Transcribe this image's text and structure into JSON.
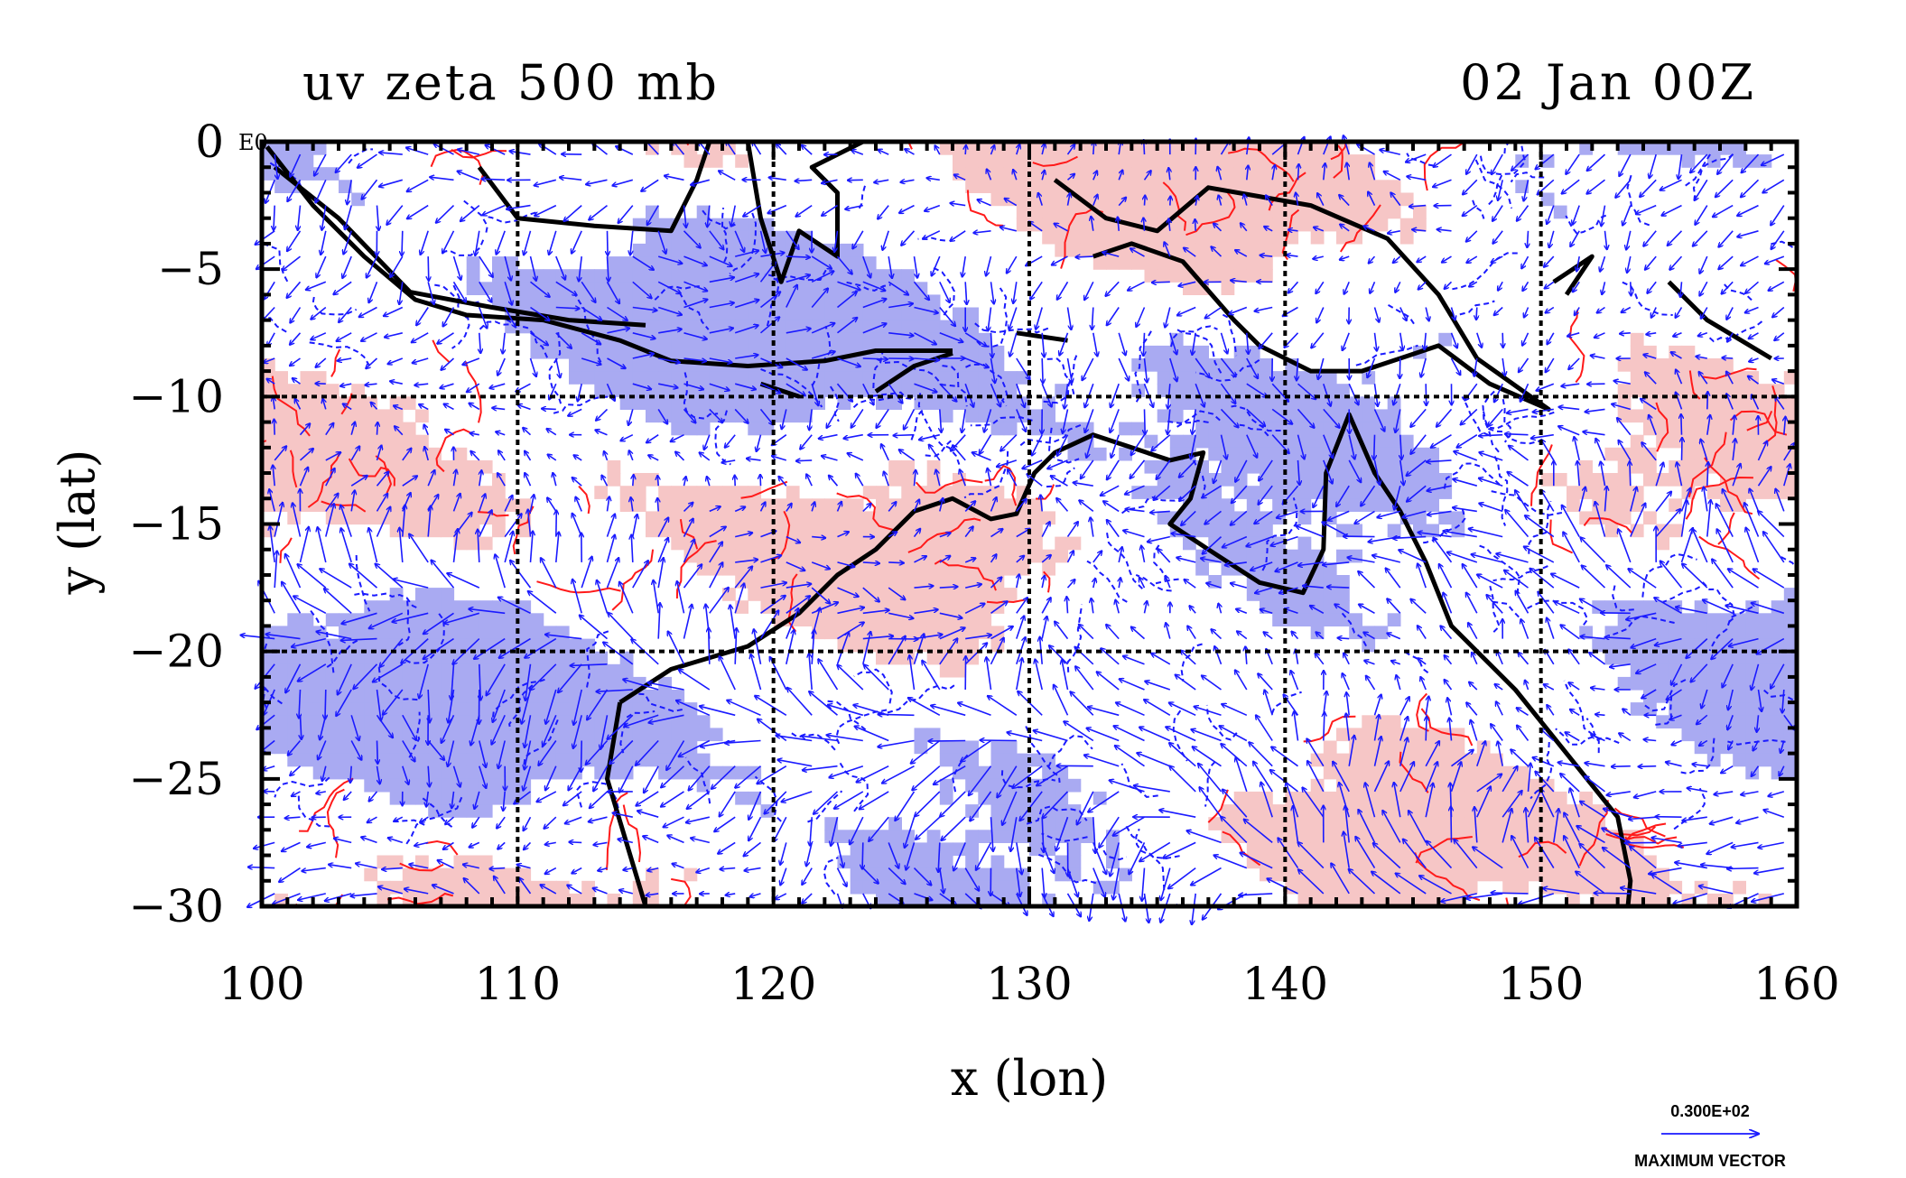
{
  "title_left": "uv zeta 500 mb",
  "title_right": "02 Jan 00Z",
  "corner_label": "E0",
  "legend": {
    "value": "0.300E+02",
    "caption": "MAXIMUM VECTOR",
    "arrow_color": "#1a1aff"
  },
  "colors": {
    "negative_fill": "#a9aaf2",
    "positive_fill": "#f6c6c6",
    "positive_contour": "#ff1a1a",
    "negative_contour": "#1a1aff",
    "vector": "#1a1aff",
    "coast": "#000000",
    "grid": "#000000"
  },
  "chart_data": {
    "type": "map",
    "xlabel": "x (lon)",
    "ylabel": "y (lat)",
    "xlim": [
      100,
      160
    ],
    "ylim": [
      -30,
      0
    ],
    "xticks": [
      100,
      110,
      120,
      130,
      140,
      150,
      160
    ],
    "yticks": [
      0,
      -5,
      -10,
      -15,
      -20,
      -25,
      -30
    ],
    "ytick_labels": [
      "0",
      "−5",
      "−10",
      "−15",
      "−20",
      "−25",
      "−30"
    ],
    "gridlines_x": [
      110,
      120,
      130,
      140,
      150
    ],
    "gridlines_y": [
      -10,
      -20
    ],
    "grid": "dashed",
    "field": "500 mb vorticity (zeta) with wind vectors (u,v)",
    "max_vector": 30
  }
}
